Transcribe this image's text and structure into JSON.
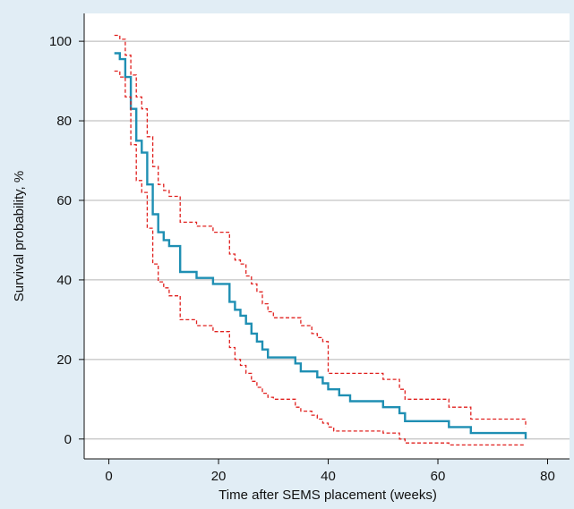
{
  "chart_data": {
    "type": "line",
    "title": "",
    "xlabel": "Time after SEMS placement (weeks)",
    "ylabel": "Survival probability, %",
    "xlim": [
      -4.5,
      84
    ],
    "ylim": [
      -5,
      107
    ],
    "xticks": [
      0,
      20,
      40,
      60,
      80
    ],
    "yticks": [
      0,
      20,
      40,
      60,
      80,
      100
    ],
    "grid": "horizontal",
    "legend": "none",
    "colors": {
      "estimate": "#1f8fb3",
      "ci": "#e0201e",
      "grid": "#b4b4b4",
      "background": "#e1edf5",
      "plot_background": "#ffffff"
    },
    "series": [
      {
        "style": "solid",
        "x": [
          1,
          2,
          3,
          4,
          5,
          6,
          7,
          8,
          9,
          10,
          11,
          13,
          16,
          19,
          22,
          23,
          24,
          25,
          26,
          27,
          28,
          29,
          30,
          34,
          35,
          37,
          38,
          39,
          40,
          41,
          42,
          44,
          50,
          53,
          54,
          62,
          66,
          76
        ],
        "y": [
          97,
          95.5,
          91,
          83,
          75,
          72,
          64,
          56.5,
          52,
          50,
          48.5,
          42,
          40.5,
          39,
          34.5,
          32.5,
          31,
          29,
          26.5,
          24.5,
          22.5,
          20.5,
          20.5,
          19,
          17,
          17,
          15.5,
          14,
          12.5,
          12.5,
          11,
          9.5,
          8,
          6.5,
          4.5,
          3,
          1.5,
          0
        ]
      },
      {
        "style": "dashed",
        "x": [
          1,
          2,
          3,
          4,
          5,
          6,
          7,
          8,
          9,
          10,
          11,
          13,
          16,
          19,
          22,
          23,
          24,
          25,
          26,
          27,
          28,
          29,
          30,
          34,
          35,
          37,
          38,
          39,
          40,
          41,
          42,
          44,
          50,
          53,
          54,
          62,
          66,
          76
        ],
        "y": [
          101.5,
          100.5,
          96.5,
          91.5,
          86,
          83,
          76,
          68.5,
          64,
          62.5,
          61,
          54.5,
          53.5,
          52,
          46.5,
          45,
          44,
          41,
          39,
          37,
          34,
          32,
          30.5,
          30.5,
          28.5,
          26.5,
          25.5,
          24.5,
          16.5,
          16.5,
          16.5,
          16.5,
          15,
          12.5,
          10,
          8,
          5,
          3
        ]
      },
      {
        "style": "dashed",
        "x": [
          1,
          2,
          3,
          4,
          5,
          6,
          7,
          8,
          9,
          10,
          11,
          13,
          16,
          19,
          22,
          23,
          24,
          25,
          26,
          27,
          28,
          29,
          30,
          34,
          35,
          37,
          38,
          39,
          40,
          41,
          42,
          44,
          50,
          53,
          54,
          62,
          66,
          76
        ],
        "y": [
          92.5,
          91,
          86,
          74,
          65,
          62,
          53,
          44,
          39.5,
          38,
          36,
          30,
          28.5,
          27,
          23,
          20,
          18.5,
          16.5,
          14.5,
          13,
          11.5,
          10.5,
          10,
          8,
          7,
          6,
          5,
          4,
          3,
          2,
          2,
          2,
          1.5,
          0,
          -1,
          -1.5,
          -1.5,
          -1.5
        ]
      }
    ]
  }
}
